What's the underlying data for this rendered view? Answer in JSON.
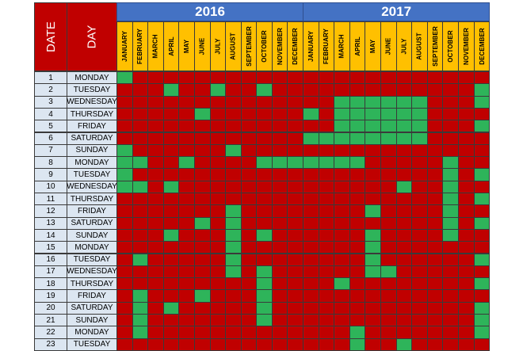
{
  "headers": {
    "date": "DATE",
    "day": "DAY"
  },
  "years": [
    "2016",
    "2017"
  ],
  "months": [
    "JANUARY",
    "FEBRUARY",
    "MARCH",
    "APRIL",
    "MAY",
    "JUNE",
    "JULY",
    "AUGUST",
    "SEPTEMBER",
    "OCTOBER",
    "NOVEMBER",
    "DECEMBER"
  ],
  "colors": {
    "not_marked": "#c00000",
    "marked": "#2eb45a",
    "header_red": "#c00000",
    "year_blue": "#4472c4",
    "month_yellow": "#ffc000",
    "date_blue": "#dce6f1"
  },
  "rows": [
    {
      "date": "1",
      "day": "MONDAY"
    },
    {
      "date": "2",
      "day": "TUESDAY"
    },
    {
      "date": "3",
      "day": "WEDNESDAY"
    },
    {
      "date": "4",
      "day": "THURSDAY"
    },
    {
      "date": "5",
      "day": "FRIDAY"
    },
    {
      "date": "6",
      "day": "SATURDAY"
    },
    {
      "date": "7",
      "day": "SUNDAY"
    },
    {
      "date": "8",
      "day": "MONDAY"
    },
    {
      "date": "9",
      "day": "TUESDAY"
    },
    {
      "date": "10",
      "day": "WEDNESDAY"
    },
    {
      "date": "11",
      "day": "THURSDAY"
    },
    {
      "date": "12",
      "day": "FRIDAY"
    },
    {
      "date": "13",
      "day": "SATURDAY"
    },
    {
      "date": "14",
      "day": "SUNDAY"
    },
    {
      "date": "15",
      "day": "MONDAY"
    },
    {
      "date": "16",
      "day": "TUESDAY"
    },
    {
      "date": "17",
      "day": "WEDNESDAY"
    },
    {
      "date": "18",
      "day": "THURSDAY"
    },
    {
      "date": "19",
      "day": "FRIDAY"
    },
    {
      "date": "20",
      "day": "SATURDAY"
    },
    {
      "date": "21",
      "day": "SUNDAY"
    },
    {
      "date": "22",
      "day": "MONDAY"
    },
    {
      "date": "23",
      "day": "TUESDAY"
    }
  ],
  "marks": [
    "100000000000000000000000",
    "000100100100000000000001",
    "000000000000001111110001",
    "000001000000101111110000",
    "000000000000001111110001",
    "000000000000111111110000",
    "100000010000000000000000",
    "110010000111111100000100",
    "100000000000000000000101",
    "110100000000000000100100",
    "000000000000000000000101",
    "000000010000000010000100",
    "000001010000000000000101",
    "000100010100000010000100",
    "000000010000000010000000",
    "010000010000000010000001",
    "000000010100000011000000",
    "000000000100001000000001",
    "010001000100000000000000",
    "010100000100000000000001",
    "010000000100000000000001",
    "010000000000000100000001",
    "000000000000000100100000"
  ]
}
